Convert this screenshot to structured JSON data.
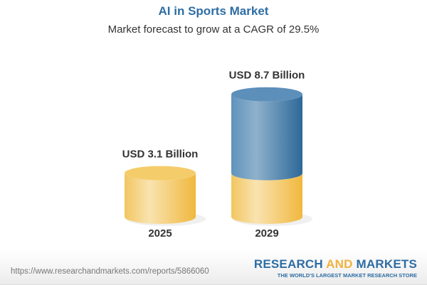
{
  "header": {
    "title": "AI in Sports Market",
    "subtitle": "Market forecast to grow at a CAGR of 29.5%"
  },
  "chart_data": {
    "type": "bar",
    "style": "3d-cylinder",
    "categories": [
      "2025",
      "2029"
    ],
    "values": [
      3.1,
      8.7
    ],
    "data_labels": [
      "USD 3.1 Billion",
      "USD 8.7 Billion"
    ],
    "unit": "USD Billion",
    "title": "AI in Sports Market",
    "subtitle": "Market forecast to grow at a CAGR of 29.5%",
    "cagr_percent": 29.5,
    "colors": {
      "base": "#f0c35a",
      "growth": "#4a80b0"
    }
  },
  "footer": {
    "url": "https://www.researchandmarkets.com/reports/5866060",
    "logo_part1": "RESEARCH ",
    "logo_part2": "AND",
    "logo_part3": " MARKETS",
    "tagline": "THE WORLD'S LARGEST MARKET RESEARCH STORE"
  }
}
